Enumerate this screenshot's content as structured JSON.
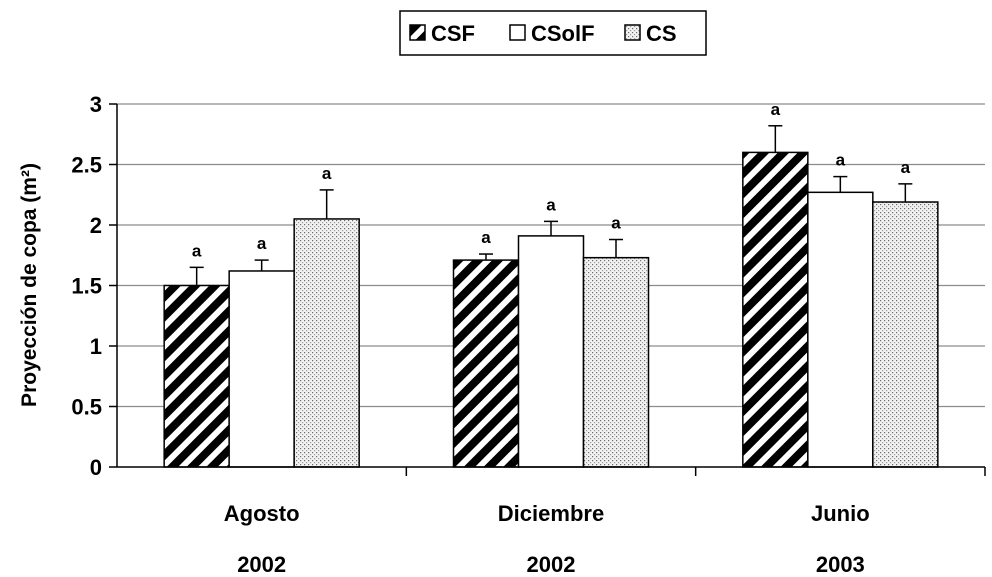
{
  "chart_data": {
    "type": "bar",
    "title": "",
    "xlabel": "",
    "ylabel": "Proyección de copa (m²)",
    "ylim": [
      0,
      3
    ],
    "yticks": [
      "0",
      "0.5",
      "1",
      "1.5",
      "2",
      "2.5",
      "3"
    ],
    "grid": true,
    "legend_position": "top-center",
    "categories": [
      {
        "month": "Agosto",
        "year": "2002"
      },
      {
        "month": "Diciembre",
        "year": "2002"
      },
      {
        "month": "Junio",
        "year": "2003"
      }
    ],
    "series": [
      {
        "name": "CSF",
        "pattern": "diagonal-stripes",
        "values": [
          1.5,
          1.71,
          2.6
        ],
        "errors": [
          0.15,
          0.05,
          0.22
        ],
        "labels": [
          "a",
          "a",
          "a"
        ]
      },
      {
        "name": "CSolF",
        "pattern": "white",
        "values": [
          1.62,
          1.91,
          2.27
        ],
        "errors": [
          0.09,
          0.12,
          0.13
        ],
        "labels": [
          "a",
          "a",
          "a"
        ]
      },
      {
        "name": "CS",
        "pattern": "dotted",
        "values": [
          2.05,
          1.73,
          2.19
        ],
        "errors": [
          0.24,
          0.15,
          0.15
        ],
        "labels": [
          "a",
          "a",
          "a"
        ]
      }
    ]
  }
}
